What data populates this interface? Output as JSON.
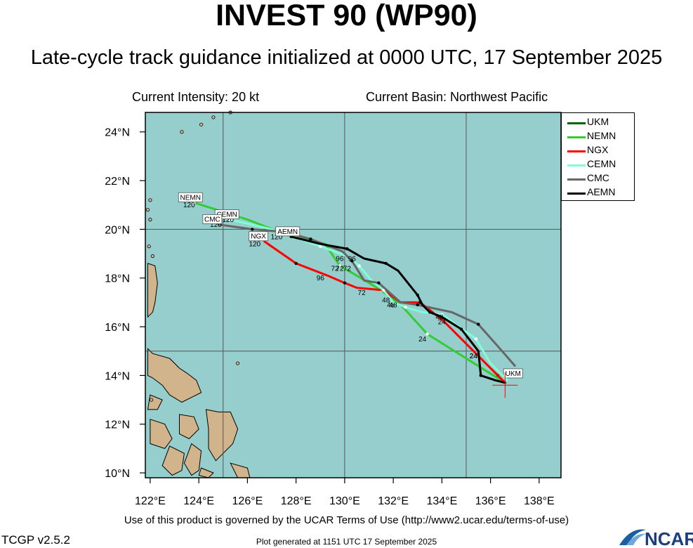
{
  "header": {
    "title": "INVEST 90 (WP90)",
    "subtitle": "Late-cycle track guidance initialized at 0000 UTC, 17 September 2025",
    "intensity": "Current Intensity: 20 kt",
    "basin": "Current Basin: Northwest Pacific"
  },
  "footer": {
    "terms": "Use of this product is governed by the UCAR Terms of Use (http://www2.ucar.edu/terms-of-use)",
    "version": "TCGP v2.5.2",
    "generated": "Plot generated at 1151 UTC   17 September 2025",
    "logo_text": "NCAR"
  },
  "map": {
    "lon_range": [
      121.8,
      138.9
    ],
    "lat_range": [
      9.8,
      24.8
    ],
    "lon_ticks": [
      "122°E",
      "124°E",
      "126°E",
      "128°E",
      "130°E",
      "132°E",
      "134°E",
      "136°E",
      "138°E"
    ],
    "lat_ticks": [
      "10°N",
      "12°N",
      "14°N",
      "16°N",
      "18°N",
      "20°N",
      "22°N",
      "24°N"
    ],
    "ocean_color": "#96cdcd",
    "land_color": "#d2b48c",
    "grid_lines_lon": [
      125,
      130,
      135
    ],
    "grid_lines_lat": [
      15,
      20
    ],
    "current_position": {
      "lon": 136.6,
      "lat": 13.6
    }
  },
  "chart_data": {
    "type": "line",
    "x_label": "longitude",
    "y_label": "latitude",
    "legend_position": "right",
    "series": [
      {
        "name": "UKM",
        "color": "#006400",
        "points": [
          [
            136.6,
            13.7
          ],
          [
            136.4,
            13.8
          ],
          [
            136.3,
            14.0
          ],
          [
            136.2,
            14.1
          ]
        ],
        "label_end": "UKM",
        "label_at": [
          137.0,
          14.1
        ]
      },
      {
        "name": "NEMN",
        "color": "#32cd32",
        "points": [
          [
            136.6,
            13.7
          ],
          [
            135.0,
            14.7
          ],
          [
            133.4,
            15.7
          ],
          [
            132.4,
            16.8
          ],
          [
            131.5,
            17.5
          ],
          [
            130.5,
            18.1
          ],
          [
            129.8,
            18.5
          ],
          [
            129.2,
            19.4
          ],
          [
            127.8,
            19.7
          ],
          [
            126.0,
            20.4
          ],
          [
            123.8,
            21.1
          ]
        ],
        "label_end": "NEMN",
        "tau_labels": [
          [
            "24",
            133.2,
            15.4
          ],
          [
            "72",
            129.6,
            18.3
          ],
          [
            "120",
            123.6,
            20.9
          ]
        ]
      },
      {
        "name": "NGX",
        "color": "#ff0000",
        "points": [
          [
            136.6,
            13.7
          ],
          [
            134.0,
            16.3
          ],
          [
            133.1,
            17.0
          ],
          [
            132.3,
            17.0
          ],
          [
            131.6,
            17.5
          ],
          [
            130.5,
            17.6
          ],
          [
            130.0,
            17.8
          ],
          [
            129.3,
            18.1
          ],
          [
            128.0,
            18.6
          ],
          [
            126.7,
            19.5
          ]
        ],
        "label_end": "NGX",
        "tau_labels": [
          [
            "24",
            134.0,
            16.1
          ],
          [
            "48",
            131.9,
            16.8
          ],
          [
            "72",
            130.7,
            17.3
          ],
          [
            "96",
            129.0,
            17.9
          ],
          [
            "120",
            126.3,
            19.3
          ]
        ]
      },
      {
        "name": "CEMN",
        "color": "#7fffd4",
        "points": [
          [
            136.7,
            13.8
          ],
          [
            136.0,
            14.5
          ],
          [
            135.4,
            15.5
          ],
          [
            134.7,
            16.0
          ],
          [
            134.0,
            16.5
          ],
          [
            133.2,
            16.6
          ],
          [
            132.5,
            16.8
          ],
          [
            132.0,
            17.0
          ],
          [
            131.6,
            17.5
          ],
          [
            131.1,
            17.9
          ],
          [
            130.6,
            18.5
          ],
          [
            130.1,
            18.9
          ],
          [
            129.0,
            19.3
          ],
          [
            127.0,
            20.0
          ],
          [
            125.3,
            20.4
          ]
        ],
        "label_end": "CEMN",
        "tau_labels": [
          [
            "24",
            135.3,
            14.7
          ],
          [
            "48",
            131.7,
            17.0
          ],
          [
            "72",
            130.1,
            18.3
          ],
          [
            "120",
            125.2,
            20.3
          ]
        ]
      },
      {
        "name": "CMC",
        "color": "#666666",
        "points": [
          [
            137.0,
            14.4
          ],
          [
            136.3,
            15.2
          ],
          [
            135.5,
            16.1
          ],
          [
            134.4,
            16.6
          ],
          [
            133.0,
            16.9
          ],
          [
            132.3,
            17.0
          ],
          [
            131.4,
            17.8
          ],
          [
            130.8,
            17.9
          ],
          [
            130.3,
            18.7
          ],
          [
            129.9,
            19.1
          ],
          [
            128.6,
            19.6
          ],
          [
            127.5,
            19.9
          ],
          [
            126.2,
            20.0
          ],
          [
            124.8,
            20.2
          ]
        ],
        "label_end": "CMC",
        "tau_labels": [
          [
            "48",
            133.9,
            16.3
          ],
          [
            "72",
            129.8,
            18.3
          ],
          [
            "96",
            129.8,
            18.7
          ],
          [
            "120",
            124.7,
            20.1
          ]
        ]
      },
      {
        "name": "AEMN",
        "color": "#000000",
        "points": [
          [
            136.6,
            13.7
          ],
          [
            136.2,
            13.8
          ],
          [
            135.6,
            14.0
          ],
          [
            135.5,
            15.0
          ],
          [
            134.8,
            15.9
          ],
          [
            134.0,
            16.4
          ],
          [
            133.5,
            16.6
          ],
          [
            133.2,
            16.9
          ],
          [
            133.0,
            17.3
          ],
          [
            132.2,
            18.3
          ],
          [
            131.7,
            18.6
          ],
          [
            130.8,
            18.8
          ],
          [
            130.1,
            19.2
          ],
          [
            129.0,
            19.4
          ],
          [
            127.8,
            19.7
          ]
        ],
        "label_end": "AEMN",
        "tau_labels": [
          [
            "24",
            135.3,
            14.7
          ],
          [
            "48",
            132.0,
            16.8
          ],
          [
            "96",
            130.3,
            18.7
          ],
          [
            "120",
            127.2,
            19.6
          ]
        ]
      }
    ]
  },
  "legend": {
    "items": [
      {
        "name": "UKM",
        "color": "#006400"
      },
      {
        "name": "NEMN",
        "color": "#32cd32"
      },
      {
        "name": "NGX",
        "color": "#ff0000"
      },
      {
        "name": "CEMN",
        "color": "#7fffd4"
      },
      {
        "name": "CMC",
        "color": "#666666"
      },
      {
        "name": "AEMN",
        "color": "#000000"
      }
    ]
  }
}
